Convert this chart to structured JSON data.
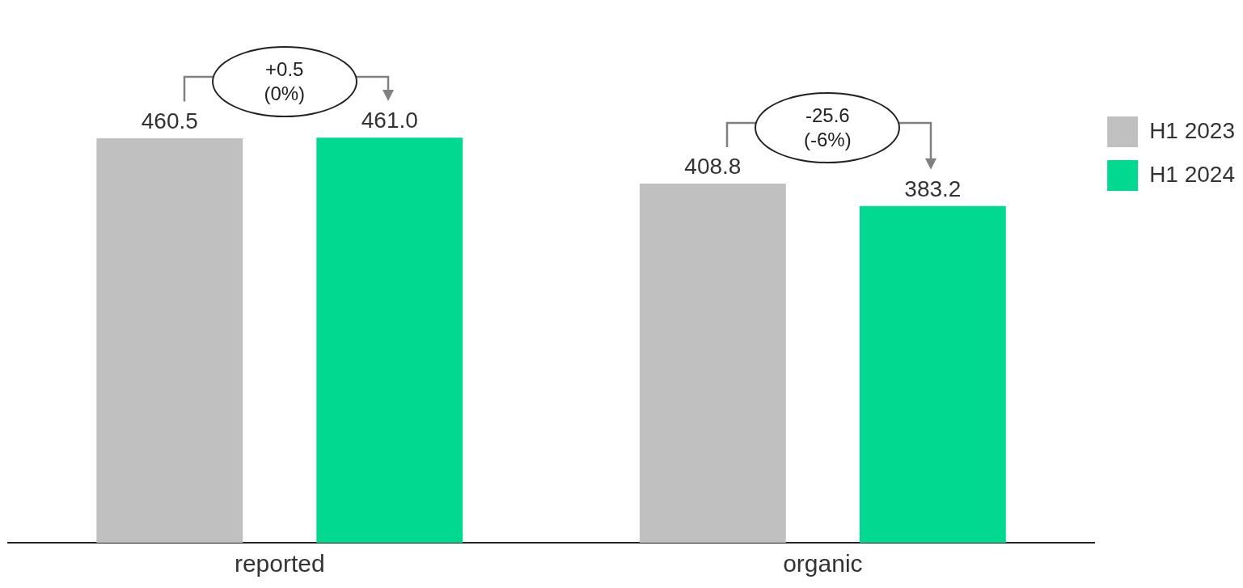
{
  "chart_data": {
    "type": "bar",
    "categories": [
      "reported",
      "organic"
    ],
    "series": [
      {
        "name": "H1 2023",
        "color": "#c0c0c0",
        "values": [
          460.5,
          408.8
        ],
        "value_labels": [
          "460.5",
          "408.8"
        ]
      },
      {
        "name": "H1 2024",
        "color": "#00d98f",
        "values": [
          461.0,
          383.2
        ],
        "value_labels": [
          "461.0",
          "383.2"
        ]
      }
    ],
    "annotations": [
      "+0.5\n(0%)",
      "-25.6\n(-6%)"
    ],
    "legend": "top right",
    "grid": false
  }
}
